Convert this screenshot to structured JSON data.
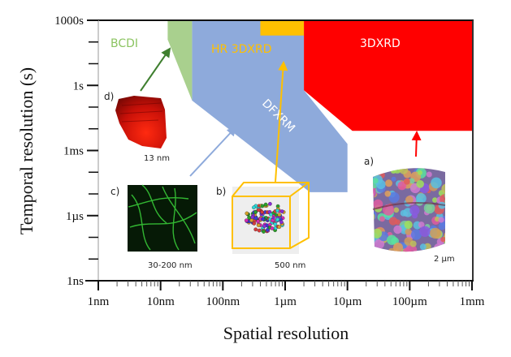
{
  "chart_data": {
    "type": "area",
    "title": "",
    "xlabel": "Spatial resolution",
    "ylabel": "Temporal resolution (s)",
    "xscale": "log",
    "yscale": "log",
    "xlim_m": [
      1e-09,
      0.001
    ],
    "ylim_s": [
      1e-09,
      1000
    ],
    "x_ticks": [
      {
        "label": "1nm",
        "value": 1e-09
      },
      {
        "label": "10nm",
        "value": 1e-08
      },
      {
        "label": "100nm",
        "value": 1e-07
      },
      {
        "label": "1µm",
        "value": 1e-06
      },
      {
        "label": "10µm",
        "value": 1e-05
      },
      {
        "label": "100µm",
        "value": 0.0001
      },
      {
        "label": "1mm",
        "value": 0.001
      }
    ],
    "y_ticks": [
      {
        "label": "1000s",
        "value": 1000
      },
      {
        "label": "1s",
        "value": 1
      },
      {
        "label": "1ms",
        "value": 0.001
      },
      {
        "label": "1µs",
        "value": 1e-06
      },
      {
        "label": "1ns",
        "value": 1e-09
      }
    ],
    "regions": [
      {
        "name": "BCDI",
        "color": "#a9d08e",
        "label_color": "#8cc462",
        "polygon": [
          [
            1.3e-08,
            1000
          ],
          [
            3.2e-08,
            1000
          ],
          [
            3.2e-08,
            0.2
          ],
          [
            1.3e-08,
            130
          ]
        ]
      },
      {
        "name": "DFXRM",
        "color": "#8eaadb",
        "label_color": "#ffffff",
        "polygon": [
          [
            3.2e-08,
            1000
          ],
          [
            2e-06,
            1000
          ],
          [
            2e-06,
            0.6
          ],
          [
            1e-05,
            0.002
          ],
          [
            1e-05,
            1.2e-05
          ],
          [
            2.5e-06,
            1.2e-05
          ],
          [
            3.2e-08,
            0.2
          ]
        ]
      },
      {
        "name": "HR 3DXRD",
        "color": "#ffc000",
        "label_color": "#ffc000",
        "polygon": [
          [
            4e-07,
            1000
          ],
          [
            2e-06,
            1000
          ],
          [
            2e-06,
            200
          ],
          [
            4e-07,
            200
          ]
        ]
      },
      {
        "name": "3DXRD",
        "color": "#ff0000",
        "label_color": "#ffffff",
        "polygon": [
          [
            2e-06,
            1000
          ],
          [
            0.001,
            1000
          ],
          [
            0.001,
            0.008
          ],
          [
            1.2e-05,
            0.008
          ],
          [
            2e-06,
            0.6
          ]
        ]
      }
    ],
    "annotations": [
      {
        "panel": "a)",
        "scale": "2 µm",
        "arrow_to": "3DXRD",
        "arrow_color": "#ff0000"
      },
      {
        "panel": "b)",
        "scale": "500 nm",
        "arrow_to": "HR 3DXRD",
        "arrow_color": "#ffc000"
      },
      {
        "panel": "c)",
        "scale": "30-200 nm",
        "arrow_to": "DFXRM",
        "arrow_color": "#8eaadb"
      },
      {
        "panel": "d)",
        "scale": "13 nm",
        "arrow_to": "BCDI",
        "arrow_color": "#3f7f2f"
      }
    ],
    "grid": false,
    "legend": "none"
  }
}
